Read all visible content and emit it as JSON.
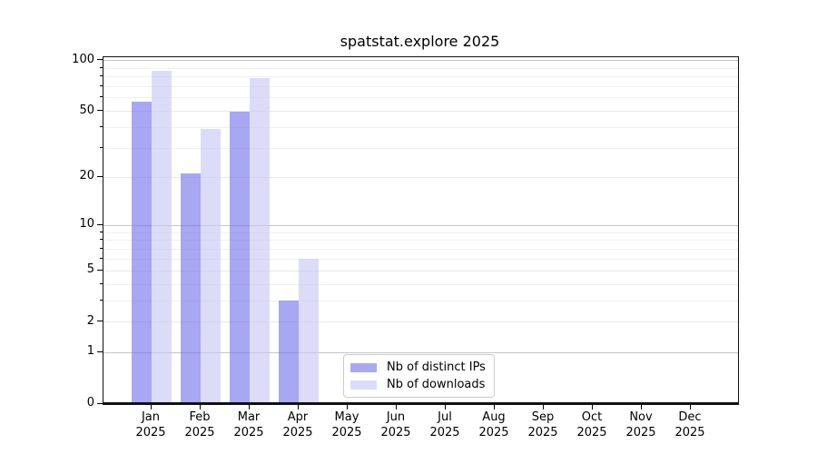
{
  "title": "spatstat.explore 2025",
  "legend": {
    "items": [
      {
        "label": "Nb of distinct IPs",
        "color": "#a9a9f3"
      },
      {
        "label": "Nb of downloads",
        "color": "#dcdcf9"
      }
    ]
  },
  "axes": {
    "y_tick_labels": [
      "0",
      "1",
      "2",
      "5",
      "10",
      "20",
      "50",
      "100"
    ],
    "x_tick_months": [
      "Jan",
      "Feb",
      "Mar",
      "Apr",
      "May",
      "Jun",
      "Jul",
      "Aug",
      "Sep",
      "Oct",
      "Nov",
      "Dec"
    ],
    "x_tick_year": "2025"
  },
  "chart_data": {
    "type": "bar",
    "title": "spatstat.explore 2025",
    "categories": [
      "Jan 2025",
      "Feb 2025",
      "Mar 2025",
      "Apr 2025",
      "May 2025",
      "Jun 2025",
      "Jul 2025",
      "Aug 2025",
      "Sep 2025",
      "Oct 2025",
      "Nov 2025",
      "Dec 2025"
    ],
    "series": [
      {
        "name": "Nb of distinct IPs",
        "values": [
          57,
          21,
          50,
          3,
          0,
          0,
          0,
          0,
          0,
          0,
          0,
          0
        ],
        "fill": "rgba(113,113,235,0.62)",
        "swatch": "#a9a9f3"
      },
      {
        "name": "Nb of downloads",
        "values": [
          87,
          39,
          79,
          6,
          0,
          0,
          0,
          0,
          0,
          0,
          0,
          0
        ],
        "fill": "rgba(198,198,246,0.62)",
        "swatch": "#dcdcf9"
      }
    ],
    "xlabel": "",
    "ylabel": "",
    "yscale": "log1p",
    "ylim": [
      0,
      104
    ],
    "y_ticks": [
      0,
      1,
      2,
      5,
      10,
      20,
      50,
      100
    ],
    "y_minor_ticks": [
      3,
      4,
      6,
      7,
      8,
      9,
      30,
      40,
      60,
      70,
      80,
      90
    ],
    "grid": true,
    "grid_color_decade": "#c6c6c6",
    "grid_color_major": "#e8e8e8",
    "grid_color_minor": "#f0f0f0",
    "legend_position": "inside bottom-center"
  }
}
